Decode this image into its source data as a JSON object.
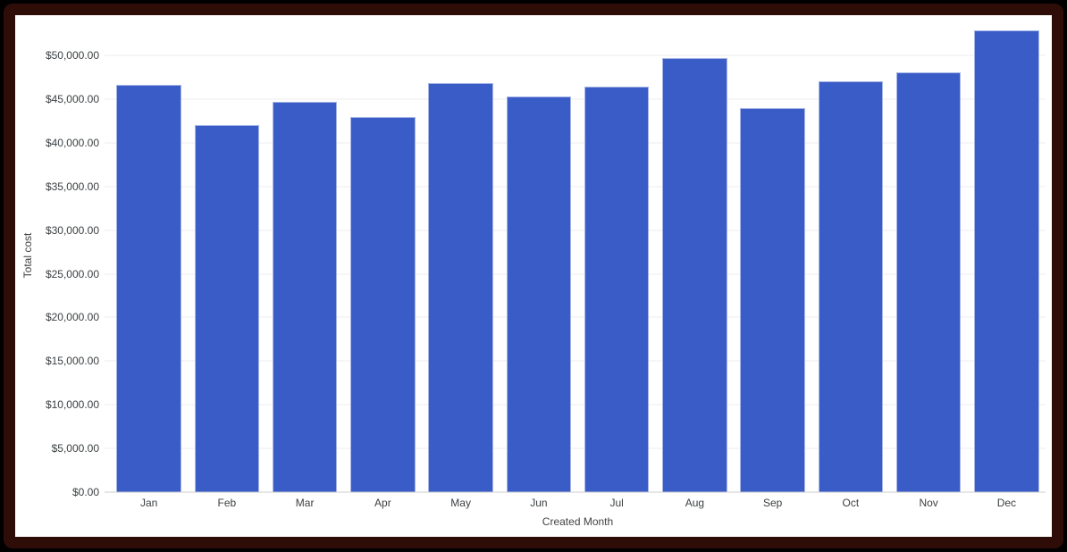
{
  "frame": {
    "outer_background": "#000000",
    "border_color": "#2e0d08",
    "canvas_background": "#ffffff"
  },
  "chart_data": {
    "type": "bar",
    "title": "",
    "categories": [
      "Jan",
      "Feb",
      "Mar",
      "Apr",
      "May",
      "Jun",
      "Jul",
      "Aug",
      "Sep",
      "Oct",
      "Nov",
      "Dec"
    ],
    "values": [
      46600,
      42000,
      44700,
      43000,
      46800,
      45300,
      46400,
      49700,
      44000,
      47000,
      48100,
      52900
    ],
    "xlabel": "Created Month",
    "ylabel": "Total cost",
    "ylim": [
      0,
      54200
    ],
    "y_tick_interval": 5000,
    "y_ticks": [
      {
        "value": 0,
        "label": "$0.00"
      },
      {
        "value": 5000,
        "label": "$5,000.00"
      },
      {
        "value": 10000,
        "label": "$10,000.00"
      },
      {
        "value": 15000,
        "label": "$15,000.00"
      },
      {
        "value": 20000,
        "label": "$20,000.00"
      },
      {
        "value": 25000,
        "label": "$25,000.00"
      },
      {
        "value": 30000,
        "label": "$30,000.00"
      },
      {
        "value": 35000,
        "label": "$35,000.00"
      },
      {
        "value": 40000,
        "label": "$40,000.00"
      },
      {
        "value": 45000,
        "label": "$45,000.00"
      },
      {
        "value": 50000,
        "label": "$50,000.00"
      }
    ],
    "grid": true,
    "legend": "none",
    "colors": {
      "bar": "#3a5cc7",
      "bar_stroke": "rgba(255,255,255,0.55)",
      "gridline": "#ececec",
      "axis_line": "#cccccc",
      "tick_label": "#3c4043",
      "axis_title": "#424242"
    }
  }
}
